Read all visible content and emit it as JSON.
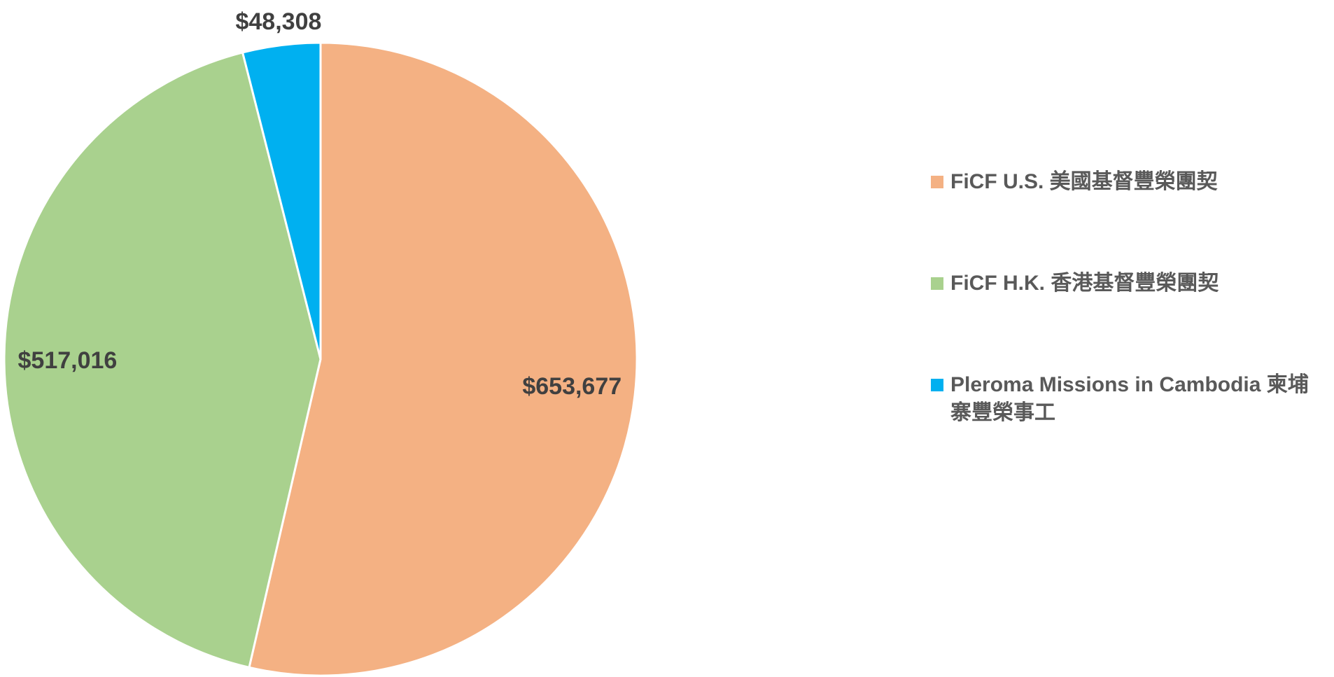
{
  "chart_data": {
    "type": "pie",
    "categories": [
      "FiCF U.S.  美國基督豐榮團契",
      "FiCF H.K.  香港基督豐榮團契",
      "Pleroma Missions in Cambodia 柬埔寨豐榮事工"
    ],
    "values": [
      653677,
      517016,
      48308
    ],
    "value_labels": [
      "$653,677",
      "$517,016",
      "$48,308"
    ],
    "colors": [
      "#f4b183",
      "#a9d18e",
      "#00b0f0"
    ],
    "legend": "right"
  }
}
